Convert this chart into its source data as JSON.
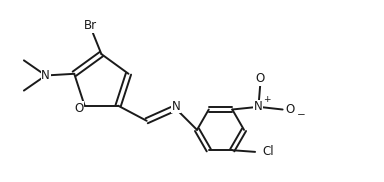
{
  "bg_color": "#ffffff",
  "line_color": "#1a1a1a",
  "line_width": 1.4,
  "font_size": 8.5,
  "xlim": [
    -1.2,
    10.2
  ],
  "ylim": [
    -1.5,
    3.2
  ],
  "figsize": [
    3.84,
    1.82
  ],
  "dpi": 100
}
